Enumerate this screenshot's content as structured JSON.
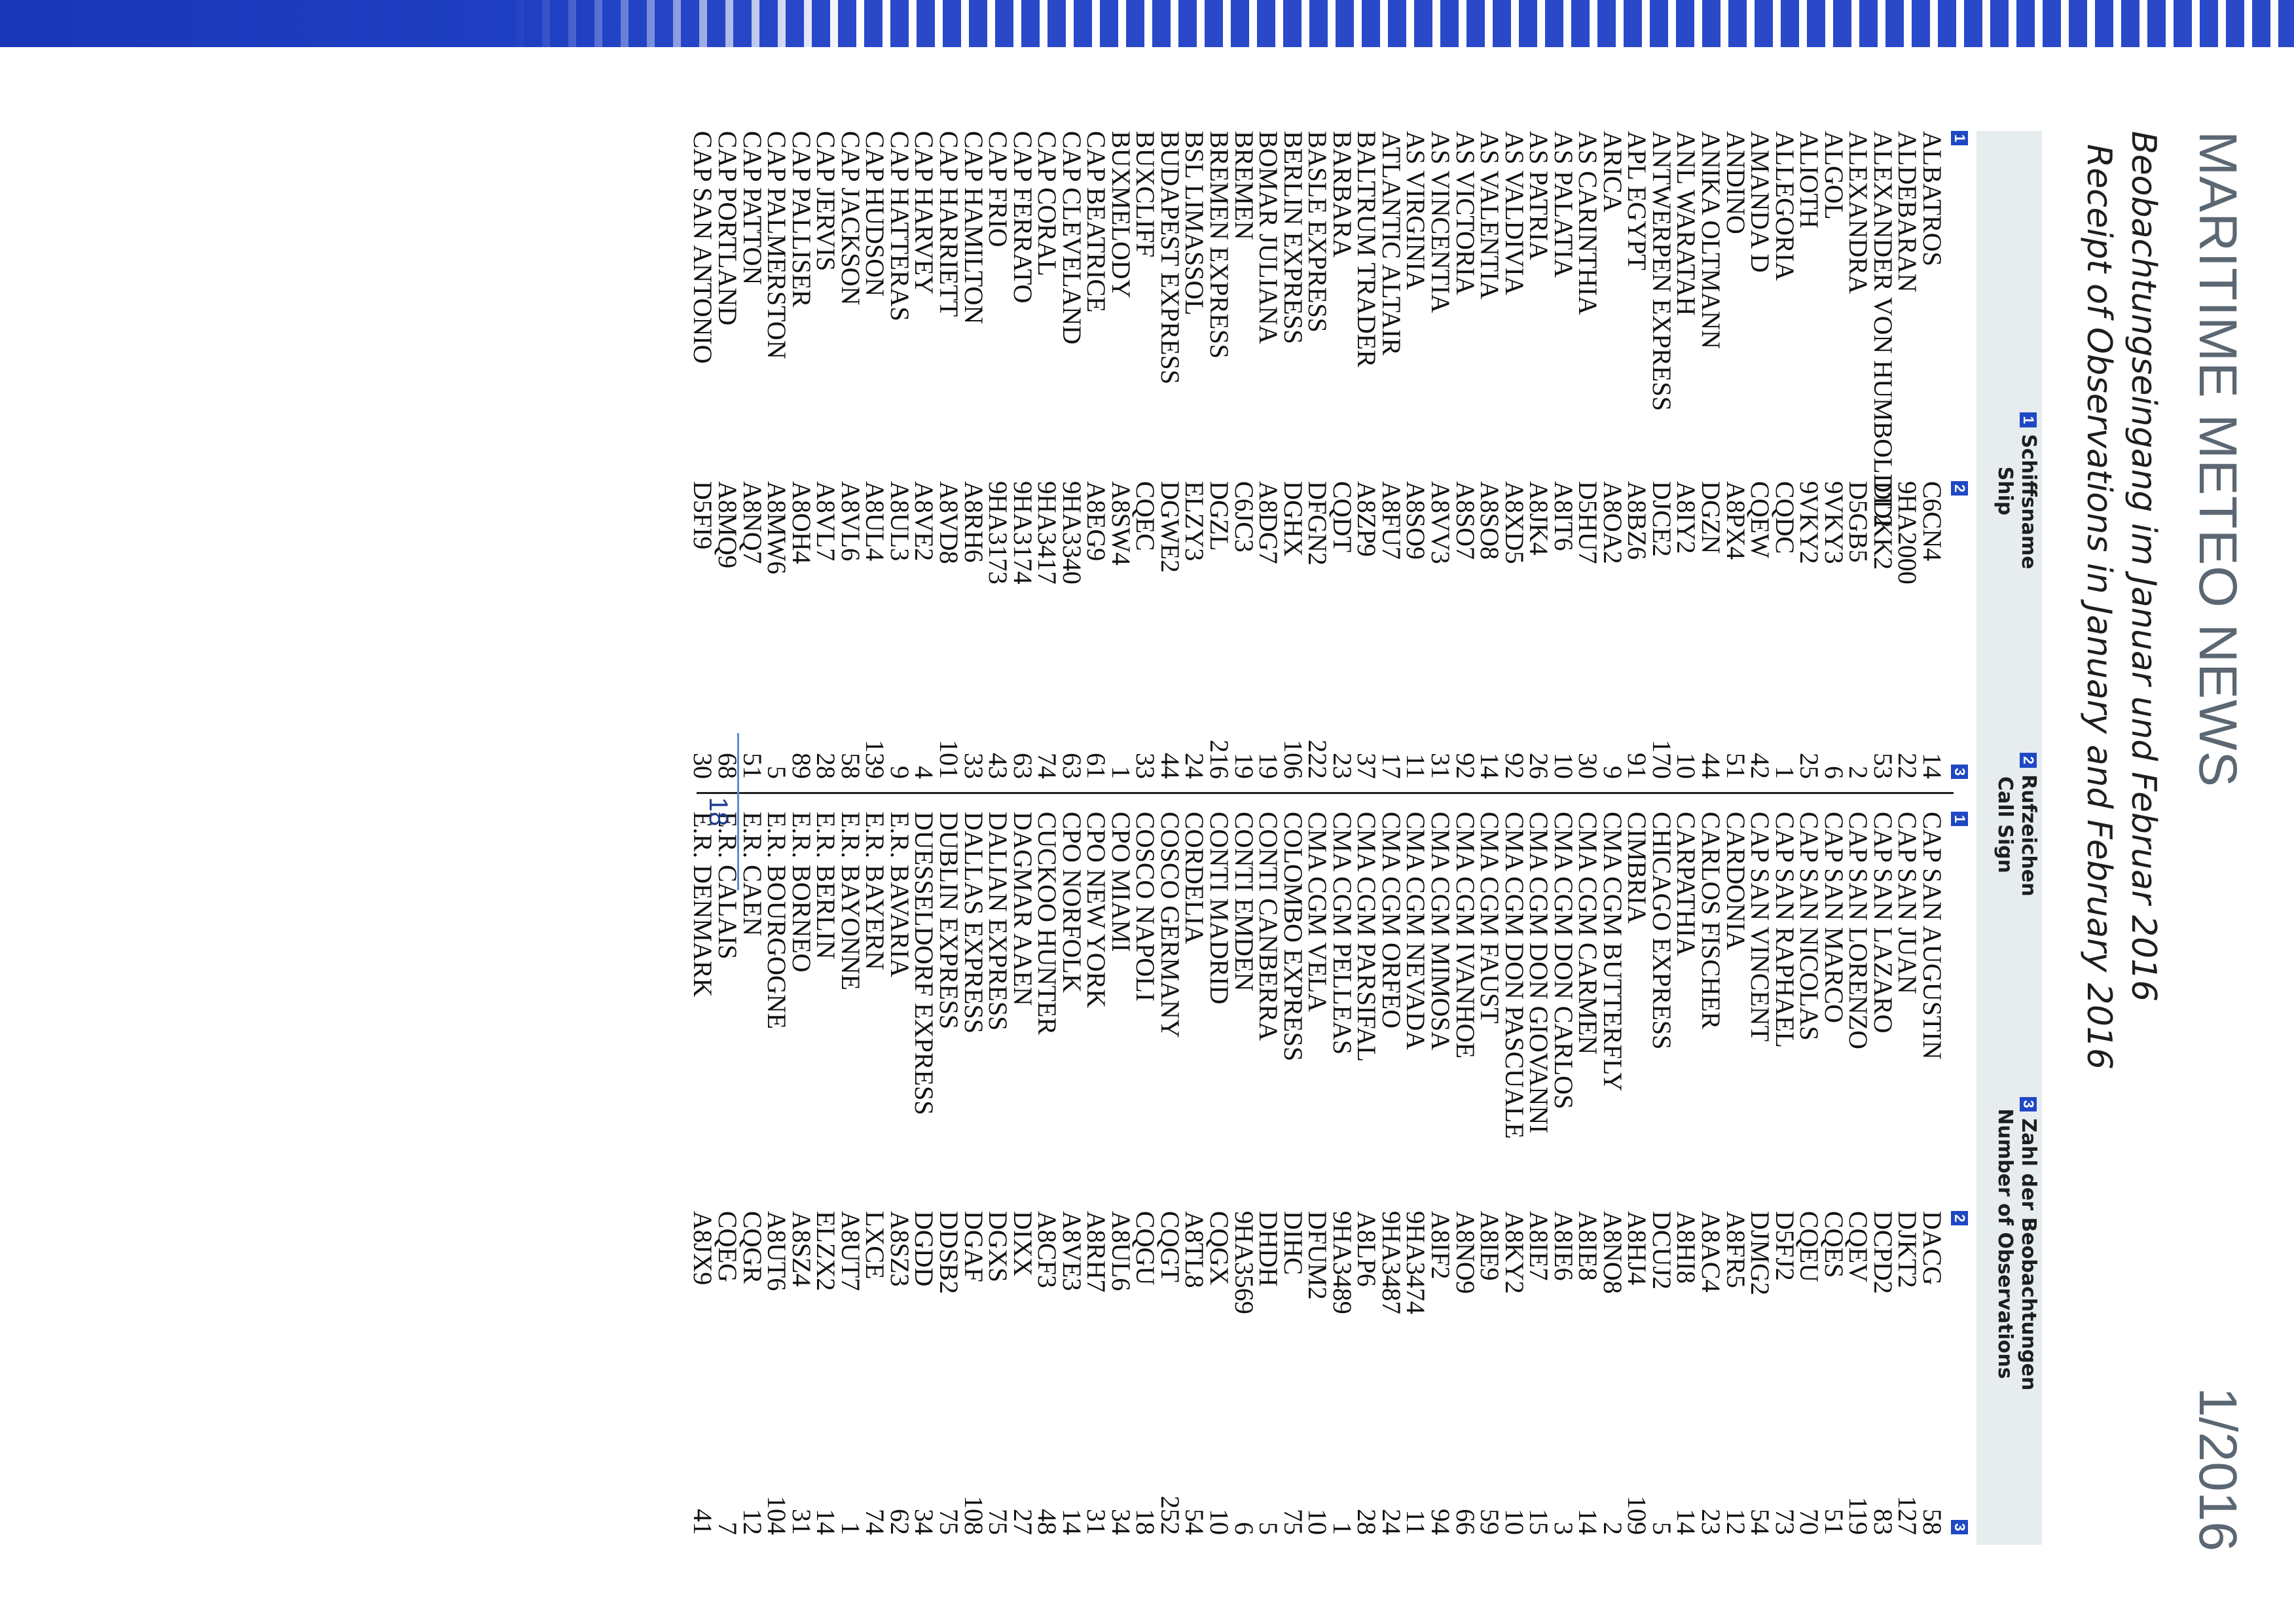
{
  "header": {
    "masthead": "MARITIME METEO NEWS",
    "issue": "1/2016",
    "title_de": "Beobachtungseingang im Januar und Februar 2016",
    "title_en": "Receipt of Observations in January and February 2016"
  },
  "columns": {
    "ship": {
      "num": "1",
      "de": "Schiffsname",
      "en": "Ship"
    },
    "call_sign": {
      "num": "2",
      "de": "Rufzeichen",
      "en": "Call Sign"
    },
    "observations": {
      "num": "3",
      "de": "Zahl der Beobachtungen",
      "en": "Number of Observations"
    }
  },
  "column_numbers": [
    "1",
    "2",
    "3",
    "1",
    "2",
    "3"
  ],
  "rows": [
    [
      "ALBATROS",
      "C6CN4",
      "14",
      "CAP SAN AUGUSTIN",
      "DACG",
      "58"
    ],
    [
      "ALDEBARAN",
      "9HA2000",
      "22",
      "CAP SAN JUAN",
      "DJKT2",
      "127"
    ],
    [
      "ALEXANDER VON HUMBOLDT 2",
      "DDKK2",
      "53",
      "CAP SAN LAZARO",
      "DCPD2",
      "83"
    ],
    [
      "ALEXANDRA",
      "D5GB5",
      "2",
      "CAP SAN LORENZO",
      "CQEV",
      "119"
    ],
    [
      "ALGOL",
      "9VKY3",
      "6",
      "CAP SAN MARCO",
      "CQES",
      "51"
    ],
    [
      "ALIOTH",
      "9VKY2",
      "25",
      "CAP SAN NICOLAS",
      "CQEU",
      "70"
    ],
    [
      "ALLEGORIA",
      "CQDC",
      "1",
      "CAP SAN RAPHAEL",
      "D5FJ2",
      "73"
    ],
    [
      "AMANDA D",
      "CQEW",
      "42",
      "CAP SAN VINCENT",
      "DJMG2",
      "54"
    ],
    [
      "ANDINO",
      "A8PX4",
      "51",
      "CARDONIA",
      "A8FR5",
      "12"
    ],
    [
      "ANIKA OLTMANN",
      "DGZN",
      "44",
      "CARLOS FISCHER",
      "A8AC4",
      "23"
    ],
    [
      "ANL WARATAH",
      "A8IY2",
      "10",
      "CARPATHIA",
      "A8HI8",
      "14"
    ],
    [
      "ANTWERPEN EXPRESS",
      "DJCE2",
      "170",
      "CHICAGO EXPRESS",
      "DCUJ2",
      "5"
    ],
    [
      "APL EGYPT",
      "A8BZ6",
      "91",
      "CIMBRIA",
      "A8HJ4",
      "109"
    ],
    [
      "ARICA",
      "A8OA2",
      "9",
      "CMA CGM BUTTERFLY",
      "A8NO8",
      "2"
    ],
    [
      "AS CARINTHIA",
      "D5HU7",
      "30",
      "CMA CGM CARMEN",
      "A8IE8",
      "14"
    ],
    [
      "AS PALATIA",
      "A8IT6",
      "10",
      "CMA CGM DON CARLOS",
      "A8IE6",
      "3"
    ],
    [
      "AS PATRIA",
      "A8JK4",
      "26",
      "CMA CGM DON GIOVANNI",
      "A8IE7",
      "15"
    ],
    [
      "AS VALDIVIA",
      "A8XD5",
      "92",
      "CMA CGM DON PASCUALE",
      "A8KY2",
      "10"
    ],
    [
      "AS VALENTIA",
      "A8SO8",
      "14",
      "CMA CGM FAUST",
      "A8IE9",
      "59"
    ],
    [
      "AS VICTORIA",
      "A8SO7",
      "92",
      "CMA CGM IVANHOE",
      "A8NO9",
      "66"
    ],
    [
      "AS VINCENTIA",
      "A8VV3",
      "31",
      "CMA CGM MIMOSA",
      "A8IF2",
      "94"
    ],
    [
      "AS VIRGINIA",
      "A8SO9",
      "11",
      "CMA CGM NEVADA",
      "9HA3474",
      "11"
    ],
    [
      "ATLANTIC ALTAIR",
      "A8FU7",
      "17",
      "CMA CGM ORFEO",
      "9HA3487",
      "24"
    ],
    [
      "BALTRUM TRADER",
      "A8ZP9",
      "37",
      "CMA CGM PARSIFAL",
      "A8LP6",
      "28"
    ],
    [
      "BARBARA",
      "CQDT",
      "23",
      "CMA CGM PELLEAS",
      "9HA3489",
      "1"
    ],
    [
      "BASLE EXPRESS",
      "DFGN2",
      "222",
      "CMA CGM VELA",
      "DFUM2",
      "10"
    ],
    [
      "BERLIN EXPRESS",
      "DGHX",
      "106",
      "COLOMBO EXPRESS",
      "DIHC",
      "75"
    ],
    [
      "BOMAR JULIANA",
      "A8DG7",
      "19",
      "CONTI CANBERRA",
      "DHDH",
      "5"
    ],
    [
      "BREMEN",
      "C6JC3",
      "19",
      "CONTI EMDEN",
      "9HA3569",
      "6"
    ],
    [
      "BREMEN EXPRESS",
      "DGZL",
      "216",
      "CONTI MADRID",
      "CQGX",
      "10"
    ],
    [
      "BSL LIMASSOL",
      "ELZY3",
      "24",
      "CORDELIA",
      "A8TL8",
      "54"
    ],
    [
      "BUDAPEST EXPRESS",
      "DGWE2",
      "44",
      "COSCO GERMANY",
      "CQGT",
      "252"
    ],
    [
      "BUXCLIFF",
      "CQEC",
      "33",
      "COSCO NAPOLI",
      "CQGU",
      "18"
    ],
    [
      "BUXMELODY",
      "A8SW4",
      "1",
      "CPO MIAMI",
      "A8UL6",
      "34"
    ],
    [
      "CAP BEATRICE",
      "A8EG9",
      "61",
      "CPO NEW YORK",
      "A8RH7",
      "31"
    ],
    [
      "CAP CLEVELAND",
      "9HA3340",
      "63",
      "CPO NORFOLK",
      "A8VE3",
      "14"
    ],
    [
      "CAP CORAL",
      "9HA3417",
      "74",
      "CUCKOO HUNTER",
      "A8CF3",
      "48"
    ],
    [
      "CAP FERRATO",
      "9HA3174",
      "63",
      "DAGMAR AAEN",
      "DIXX",
      "27"
    ],
    [
      "CAP FRIO",
      "9HA3173",
      "43",
      "DALIAN EXPRESS",
      "DGXS",
      "75"
    ],
    [
      "CAP HAMILTON",
      "A8RH6",
      "33",
      "DALLAS EXPRESS",
      "DGAF",
      "108"
    ],
    [
      "CAP HARRIETT",
      "A8VD8",
      "101",
      "DUBLIN EXPRESS",
      "DDSB2",
      "75"
    ],
    [
      "CAP HARVEY",
      "A8VE2",
      "4",
      "DUESSELDORF EXPRESS",
      "DGDD",
      "34"
    ],
    [
      "CAP HATTERAS",
      "A8UL3",
      "9",
      "E.R. BAVARIA",
      "A8SZ3",
      "62"
    ],
    [
      "CAP HUDSON",
      "A8UL4",
      "139",
      "E.R. BAYERN",
      "LXCE",
      "74"
    ],
    [
      "CAP JACKSON",
      "A8VL6",
      "58",
      "E.R. BAYONNE",
      "A8UT7",
      "1"
    ],
    [
      "CAP JERVIS",
      "A8VL7",
      "28",
      "E.R. BERLIN",
      "ELZX2",
      "14"
    ],
    [
      "CAP PALLISER",
      "A8OH4",
      "89",
      "E.R. BORNEO",
      "A8SZ4",
      "31"
    ],
    [
      "CAP PALMERSTON",
      "A8MW6",
      "5",
      "E.R. BOURGOGNE",
      "A8UT6",
      "104"
    ],
    [
      "CAP PATTON",
      "A8NQ7",
      "51",
      "E.R. CAEN",
      "CQGR",
      "12"
    ],
    [
      "CAP PORTLAND",
      "A8MQ9",
      "68",
      "E.R. CALAIS",
      "CQEG",
      "7"
    ],
    [
      "CAP SAN ANTONIO",
      "D5FI9",
      "30",
      "E.R. DENMARK",
      "A8JX9",
      "41"
    ]
  ],
  "footer": {
    "page_number": "18"
  }
}
